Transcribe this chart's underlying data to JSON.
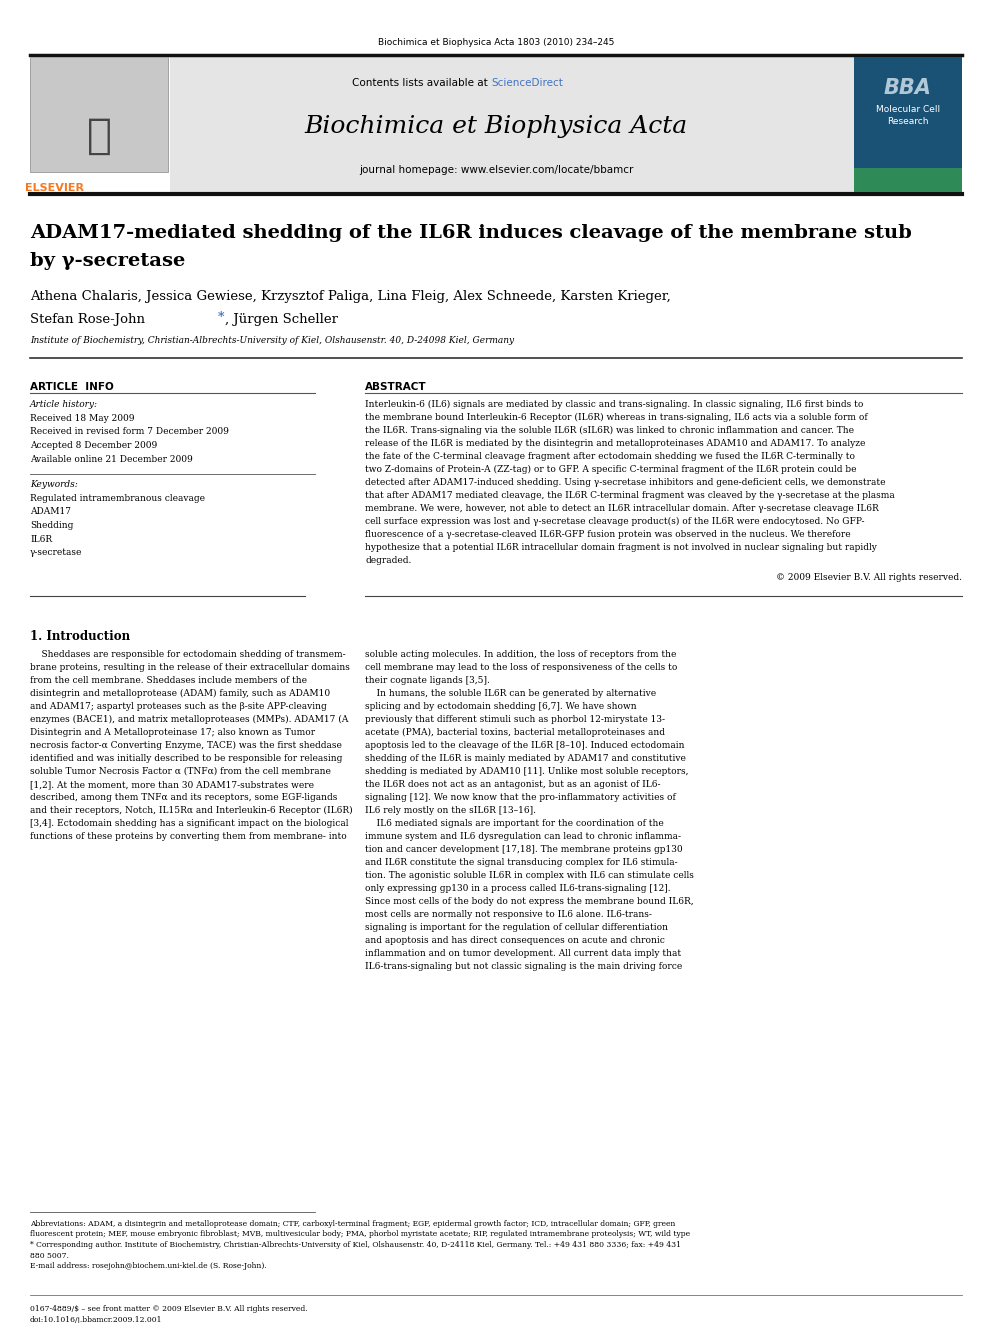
{
  "page_width": 9.92,
  "page_height": 13.23,
  "dpi": 100,
  "bg_color": "#ffffff",
  "top_citation": "Biochimica et Biophysica Acta 1803 (2010) 234–245",
  "journal_name": "Biochimica et Biophysica Acta",
  "journal_url": "journal homepage: www.elsevier.com/locate/bbamcr",
  "contents_text": "Contents lists available at ",
  "sciencedirect_text": "ScienceDirect",
  "header_bg": "#e5e5e5",
  "bba_bg": "#1a5276",
  "elsevier_orange": "#f47920",
  "link_color": "#4472c4",
  "title_line1": "ADAM17-mediated shedding of the IL6R induces cleavage of the membrane stub",
  "title_line2": "by γ-secretase",
  "authors_line1": "Athena Chalaris, Jessica Gewiese, Krzysztof Paliga, Lina Fleig, Alex Schneede, Karsten Krieger,",
  "authors_line2_pre": "Stefan Rose-John ",
  "authors_line2_star": "*",
  "authors_line2_post": ", Jürgen Scheller",
  "affiliation": "Institute of Biochemistry, Christian-Albrechts-University of Kiel, Olshausenstr. 40, D-24098 Kiel, Germany",
  "article_info_header": "ARTICLE  INFO",
  "abstract_header": "ABSTRACT",
  "history_label": "Article history:",
  "history_lines": [
    "Received 18 May 2009",
    "Received in revised form 7 December 2009",
    "Accepted 8 December 2009",
    "Available online 21 December 2009"
  ],
  "keywords_label": "Keywords:",
  "keywords": [
    "Regulated intramembranous cleavage",
    "ADAM17",
    "Shedding",
    "IL6R",
    "γ-secretase"
  ],
  "abstract_lines": [
    "Interleukin-6 (IL6) signals are mediated by classic and trans-signaling. In classic signaling, IL6 first binds to",
    "the membrane bound Interleukin-6 Receptor (IL6R) whereas in trans-signaling, IL6 acts via a soluble form of",
    "the IL6R. Trans-signaling via the soluble IL6R (sIL6R) was linked to chronic inflammation and cancer. The",
    "release of the IL6R is mediated by the disintegrin and metalloproteinases ADAM10 and ADAM17. To analyze",
    "the fate of the C-terminal cleavage fragment after ectodomain shedding we fused the IL6R C-terminally to",
    "two Z-domains of Protein-A (ZZ-tag) or to GFP. A specific C-terminal fragment of the IL6R protein could be",
    "detected after ADAM17-induced shedding. Using γ-secretase inhibitors and gene-deficient cells, we demonstrate",
    "that after ADAM17 mediated cleavage, the IL6R C-terminal fragment was cleaved by the γ-secretase at the plasma",
    "membrane. We were, however, not able to detect an IL6R intracellular domain. After γ-secretase cleavage IL6R",
    "cell surface expression was lost and γ-secretase cleavage product(s) of the IL6R were endocytosed. No GFP-",
    "fluorescence of a γ-secretase-cleaved IL6R-GFP fusion protein was observed in the nucleus. We therefore",
    "hypothesize that a potential IL6R intracellular domain fragment is not involved in nuclear signaling but rapidly",
    "degraded."
  ],
  "copyright": "© 2009 Elsevier B.V. All rights reserved.",
  "intro_heading": "1. Introduction",
  "intro_col1_lines": [
    "    Sheddases are responsible for ectodomain shedding of transmem-",
    "brane proteins, resulting in the release of their extracellular domains",
    "from the cell membrane. Sheddases include members of the",
    "disintegrin and metalloprotease (ADAM) family, such as ADAM10",
    "and ADAM17; aspartyl proteases such as the β-site APP-cleaving",
    "enzymes (BACE1), and matrix metalloproteases (MMPs). ADAM17 (A",
    "Disintegrin and A Metalloproteinase 17; also known as Tumor",
    "necrosis factor-α Converting Enzyme, TACE) was the first sheddase",
    "identified and was initially described to be responsible for releasing",
    "soluble Tumor Necrosis Factor α (TNFα) from the cell membrane",
    "[1,2]. At the moment, more than 30 ADAM17-substrates were",
    "described, among them TNFα and its receptors, some EGF-ligands",
    "and their receptors, Notch, IL15Rα and Interleukin-6 Receptor (IL6R)",
    "[3,4]. Ectodomain shedding has a significant impact on the biological",
    "functions of these proteins by converting them from membrane- into"
  ],
  "intro_col2_lines": [
    "soluble acting molecules. In addition, the loss of receptors from the",
    "cell membrane may lead to the loss of responsiveness of the cells to",
    "their cognate ligands [3,5].",
    "    In humans, the soluble IL6R can be generated by alternative",
    "splicing and by ectodomain shedding [6,7]. We have shown",
    "previously that different stimuli such as phorbol 12-mirystate 13-",
    "acetate (PMA), bacterial toxins, bacterial metalloproteinases and",
    "apoptosis led to the cleavage of the IL6R [8–10]. Induced ectodomain",
    "shedding of the IL6R is mainly mediated by ADAM17 and constitutive",
    "shedding is mediated by ADAM10 [11]. Unlike most soluble receptors,",
    "the IL6R does not act as an antagonist, but as an agonist of IL6-",
    "signaling [12]. We now know that the pro-inflammatory activities of",
    "IL6 rely mostly on the sIL6R [13–16].",
    "    IL6 mediated signals are important for the coordination of the",
    "immune system and IL6 dysregulation can lead to chronic inflamma-",
    "tion and cancer development [17,18]. The membrane proteins gp130",
    "and IL6R constitute the signal transducing complex for IL6 stimula-",
    "tion. The agonistic soluble IL6R in complex with IL6 can stimulate cells",
    "only expressing gp130 in a process called IL6-trans-signaling [12].",
    "Since most cells of the body do not express the membrane bound IL6R,",
    "most cells are normally not responsive to IL6 alone. IL6-trans-",
    "signaling is important for the regulation of cellular differentiation",
    "and apoptosis and has direct consequences on acute and chronic",
    "inflammation and on tumor development. All current data imply that",
    "IL6-trans-signaling but not classic signaling is the main driving force"
  ],
  "footnote_lines": [
    "Abbreviations: ADAM, a disintegrin and metalloprotease domain; CTF, carboxyl-terminal fragment; EGF, epidermal growth factor; ICD, intracellular domain; GFP, green",
    "fluorescent protein; MEF, mouse embryonic fibroblast; MVB, multivesicular body; PMA, phorbol myristate acetate; RIP, regulated intramembrane proteolysis; WT, wild type",
    "* Corresponding author. Institute of Biochemistry, Christian-Albrechts-University of Kiel, Olshausenstr. 40, D-24118 Kiel, Germany. Tel.: +49 431 880 3336; fax: +49 431",
    "880 5007.",
    "E-mail address: rosejohn@biochem.uni-kiel.de (S. Rose-John)."
  ],
  "issn_line": "0167-4889/$ – see front matter © 2009 Elsevier B.V. All rights reserved.",
  "doi_line": "doi:10.1016/j.bbamcr.2009.12.001"
}
